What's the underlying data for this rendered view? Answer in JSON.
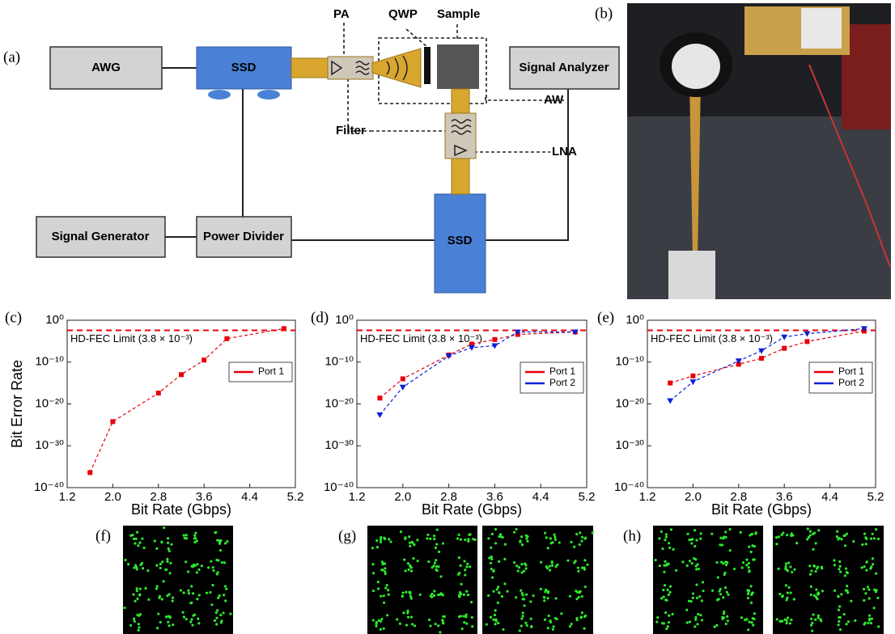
{
  "panel_labels": [
    "(a)",
    "(b)",
    "(c)",
    "(d)",
    "(e)",
    "(f)",
    "(g)",
    "(h)"
  ],
  "diagram": {
    "nodes": [
      "AWG",
      "SSD",
      "Signal Analyzer",
      "Signal Generator",
      "Power Divider",
      "SSD"
    ],
    "annotations": [
      "PA",
      "QWP",
      "Sample",
      "Filter",
      "AW",
      "LNA"
    ]
  },
  "chart_data": [
    {
      "type": "line",
      "x_label": "Bit Rate (Gbps)",
      "y_label": "Bit Error Rate",
      "x": [
        1.6,
        2.0,
        2.8,
        3.2,
        3.6,
        4.0,
        5.0
      ],
      "series": [
        {
          "name": "Port 1",
          "color": "#e8000b",
          "marker": "square",
          "values": [
            4e-37,
            6e-25,
            4e-18,
            1e-13,
            3e-10,
            4e-05,
            0.01
          ]
        }
      ],
      "xlim": [
        1.2,
        5.2
      ],
      "xticks": [
        1.2,
        {
          "value": 2.0,
          "label": "2.0"
        },
        2.8,
        3.6,
        4.4,
        5.2
      ],
      "ylog": true,
      "ylim": [
        1e-40,
        1
      ],
      "yticks": [
        {
          "value": 1,
          "label": "10⁰"
        },
        {
          "value": 1e-10,
          "label": "10⁻¹⁰"
        },
        {
          "value": 1e-20,
          "label": "10⁻²⁰"
        },
        {
          "value": 1e-30,
          "label": "10⁻³⁰"
        },
        {
          "value": 1e-40,
          "label": "10⁻⁴⁰"
        }
      ],
      "threshold": {
        "value": 0.0038,
        "label": "HD-FEC Limit (3.8 × 10⁻³)",
        "color": "#e8000b"
      },
      "legend": "right",
      "linestyle": "dashed"
    },
    {
      "type": "line",
      "x_label": "Bit Rate (Gbps)",
      "x": [
        1.6,
        2.0,
        2.8,
        3.2,
        3.6,
        4.0,
        5.0
      ],
      "series": [
        {
          "name": "Port 1",
          "color": "#e8000b",
          "marker": "square",
          "values": [
            2.5e-19,
            1e-14,
            5e-09,
            2e-06,
            2.5e-05,
            0.0004,
            0.0016
          ]
        },
        {
          "name": "Port 2",
          "color": "#0a1fd9",
          "marker": "triangle-down",
          "values": [
            2.5e-23,
            1e-16,
            3e-09,
            3e-07,
            8e-07,
            0.0016,
            0.0016
          ]
        }
      ],
      "xlim": [
        1.2,
        5.2
      ],
      "xticks": [
        1.2,
        {
          "value": 2.0,
          "label": "2.0"
        },
        2.8,
        3.6,
        4.4,
        5.2
      ],
      "ylog": true,
      "ylim": [
        1e-40,
        1
      ],
      "yticks": [
        {
          "value": 1,
          "label": "10⁰"
        },
        {
          "value": 1e-10,
          "label": "10⁻¹⁰"
        },
        {
          "value": 1e-20,
          "label": "10⁻²⁰"
        },
        {
          "value": 1e-30,
          "label": "10⁻³⁰"
        },
        {
          "value": 1e-40,
          "label": "10⁻⁴⁰"
        }
      ],
      "threshold": {
        "value": 0.0038,
        "label": "HD-FEC Limit (3.8 × 10⁻³)",
        "color": "#e8000b"
      },
      "legend": "right",
      "linestyle": "dashed"
    },
    {
      "type": "line",
      "x_label": "Bit Rate (Gbps)",
      "x": [
        1.6,
        2.0,
        2.8,
        3.2,
        3.6,
        4.0,
        5.0
      ],
      "series": [
        {
          "name": "Port 1",
          "color": "#e8000b",
          "marker": "square",
          "values": [
            1e-15,
            5e-14,
            3e-11,
            8e-10,
            2e-07,
            8e-06,
            0.0025
          ]
        },
        {
          "name": "Port 2",
          "color": "#0a1fd9",
          "marker": "triangle-down",
          "values": [
            6e-20,
            2e-15,
            2e-10,
            5e-08,
            0.0001,
            0.0006,
            0.01
          ]
        }
      ],
      "xlim": [
        1.2,
        5.2
      ],
      "xticks": [
        1.2,
        {
          "value": 2.0,
          "label": "2.0"
        },
        2.8,
        3.6,
        4.4,
        5.2
      ],
      "ylog": true,
      "ylim": [
        1e-40,
        1
      ],
      "yticks": [
        {
          "value": 1,
          "label": "10⁰"
        },
        {
          "value": 1e-10,
          "label": "10⁻¹⁰"
        },
        {
          "value": 1e-20,
          "label": "10⁻²⁰"
        },
        {
          "value": 1e-30,
          "label": "10⁻³⁰"
        },
        {
          "value": 1e-40,
          "label": "10⁻⁴⁰"
        }
      ],
      "threshold": {
        "value": 0.0038,
        "label": "HD-FEC Limit (3.8 × 10⁻³)",
        "color": "#e8000b"
      },
      "legend": "right",
      "linestyle": "dashed"
    }
  ]
}
